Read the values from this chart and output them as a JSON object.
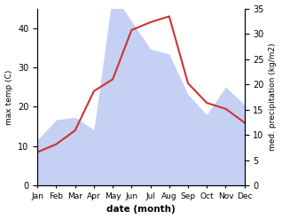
{
  "months": [
    "Jan",
    "Feb",
    "Mar",
    "Apr",
    "May",
    "Jun",
    "Jul",
    "Aug",
    "Sep",
    "Oct",
    "Nov",
    "Dec"
  ],
  "temp": [
    8.5,
    10.5,
    14.0,
    24.0,
    27.0,
    39.5,
    41.5,
    43.0,
    26.0,
    21.0,
    19.5,
    16.0
  ],
  "precip": [
    9.0,
    13.0,
    13.5,
    11.0,
    38.0,
    32.5,
    27.0,
    26.0,
    18.0,
    14.0,
    19.5,
    16.0
  ],
  "temp_color": "#cc3333",
  "precip_fill_color": "#c5d0f5",
  "temp_ylim": [
    0,
    45
  ],
  "precip_ylim": [
    0,
    35
  ],
  "temp_yticks": [
    0,
    10,
    20,
    30,
    40
  ],
  "precip_yticks": [
    0,
    5,
    10,
    15,
    20,
    25,
    30,
    35
  ],
  "xlabel": "date (month)",
  "ylabel_left": "max temp (C)",
  "ylabel_right": "med. precipitation (kg/m2)",
  "background_color": "#ffffff"
}
